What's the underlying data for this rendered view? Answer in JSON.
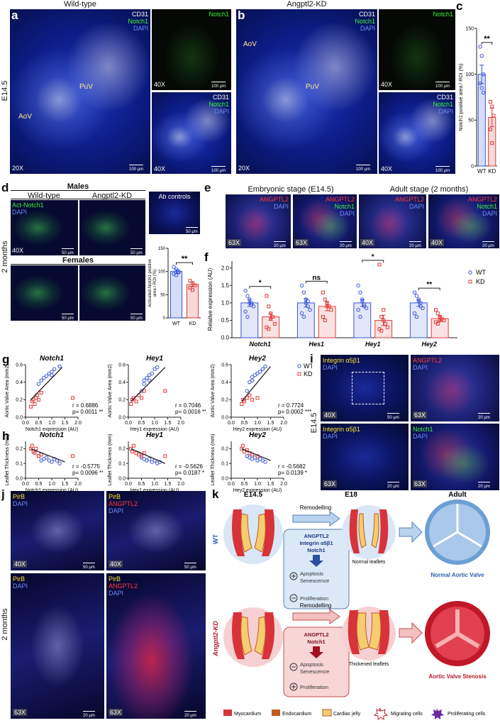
{
  "figure": {
    "a": {
      "letter": "a",
      "header": "Wild-type",
      "stage": "E14.5",
      "stains": [
        "CD31",
        "Notch1",
        "DAPI"
      ],
      "regions": [
        "AoV",
        "PuV"
      ],
      "mag_main": "20X",
      "scale_main": "100 µm",
      "inset1_stain": "Notch1",
      "inset1_mag": "40X",
      "inset1_scale": "100 µm",
      "inset2_stains": [
        "CD31",
        "Notch1",
        "DAPI"
      ],
      "inset2_mag": "40X",
      "inset2_scale": "100 µm"
    },
    "b": {
      "letter": "b",
      "header": "Angptl2-KD",
      "stains": [
        "CD31",
        "Notch1",
        "DAPI"
      ],
      "regions": [
        "AoV",
        "PuV"
      ],
      "mag_main": "20X",
      "scale_main": "100 µm",
      "inset1_stain": "Notch1",
      "inset1_mag": "40X",
      "inset1_scale": "100 µm",
      "inset2_stains": [
        "CD31",
        "Notch1",
        "DAPI"
      ],
      "inset2_mag": "40X",
      "inset2_scale": "100 µm"
    },
    "d": {
      "letter": "d",
      "stage": "2 months",
      "males": "Males",
      "females": "Females",
      "headers": [
        "Wild-type",
        "Angptl2-KD"
      ],
      "stains": [
        "Act-Notch1",
        "DAPI"
      ],
      "mag": "40X",
      "controls": "Ab controls",
      "scale": "50 µm"
    },
    "e": {
      "letter": "e",
      "headers": [
        "Embryonic stage (E14.5)",
        "Adult stage (2 months)"
      ],
      "stains_single": [
        "ANGPTL2",
        "DAPI"
      ],
      "stains_triple": [
        "ANGPTL2",
        "Notch1",
        "DAPI"
      ],
      "mags": [
        "63X",
        "63X",
        "40X",
        "40X"
      ],
      "scales": [
        "20 µm",
        "20 µm",
        "20 µm",
        "20 µm"
      ]
    },
    "i": {
      "letter": "i",
      "stage": "E14.5",
      "panels": [
        {
          "stains": [
            "Integrin α5β1",
            "DAPI"
          ],
          "mag": "40X",
          "scale": "50 µm"
        },
        {
          "stains": [
            "ANGPTL2",
            "DAPI"
          ],
          "mag": "63X",
          "scale": "20 µm"
        },
        {
          "stains": [
            "Integrin α5β1",
            "DAPI"
          ],
          "mag": "63X",
          "scale": "20 µm"
        },
        {
          "stains": [
            "Notch1",
            "DAPI"
          ],
          "mag": "63X",
          "scale": "20 µm"
        }
      ]
    },
    "j": {
      "letter": "j",
      "stage": "2 months",
      "panels": [
        {
          "stains": [
            "PirB",
            "DAPI"
          ],
          "mag": "40X",
          "scale": "50 µm"
        },
        {
          "stains": [
            "PirB",
            "ANGPTL2",
            "DAPI"
          ],
          "mag": "40X",
          "scale": "50 µm"
        },
        {
          "stains": [
            "PirB",
            "DAPI"
          ],
          "mag": "63X",
          "scale": "20 µm"
        },
        {
          "stains": [
            "PirB",
            "ANGPTL2",
            "DAPI"
          ],
          "mag": "63X",
          "scale": "20 µm"
        }
      ]
    },
    "k": {
      "letter": "k",
      "stages": [
        "E14.5",
        "E18",
        "Adult"
      ],
      "rows": [
        "WT",
        "Angptl2-KD"
      ],
      "remodelling": "Remodelling",
      "wt_box": [
        "ANGPTL2",
        "Integrin α5β1",
        "Notch1"
      ],
      "wt_effects": [
        "Apoptosis",
        "Senescence",
        "Proliferation"
      ],
      "kd_box": [
        "ANGPTL2",
        "Notch1"
      ],
      "kd_effects": [
        "Apoptosis",
        "Senescence",
        "Proliferation"
      ],
      "e18_labels": [
        "Normal leaflets",
        "Thickened leaflets"
      ],
      "outcomes": [
        "Normal Aortic Valve",
        "Aortic Valve Stenosis"
      ],
      "legend": [
        "Myocardium",
        "Endocardium",
        "Cardiac jelly",
        "Migrating cells",
        "Proliferating cells"
      ]
    }
  },
  "chart_data": [
    {
      "type": "bar",
      "panel": "c",
      "ylabel": "Notch1 positive area / ROI (%)",
      "categories": [
        "WT",
        "KD"
      ],
      "values": [
        100,
        53
      ],
      "errors": [
        10,
        10
      ],
      "points": [
        [
          130,
          120,
          100,
          90,
          85,
          80
        ],
        [
          70,
          65,
          55,
          40,
          25
        ]
      ],
      "colors": [
        "#3a55d6",
        "#e23b3b"
      ],
      "ylim": [
        0,
        150
      ],
      "yticks": [
        0,
        50,
        100,
        150
      ],
      "annotation": "**"
    },
    {
      "type": "bar",
      "ylabel": [
        "Activated-Notch1 positive",
        "area / ROI (%)"
      ],
      "categories": [
        "WT",
        "KD"
      ],
      "values": [
        100,
        72
      ],
      "errors": [
        4,
        5
      ],
      "points": [
        [
          110,
          105,
          100,
          95,
          92,
          98
        ],
        [
          80,
          75,
          70,
          65,
          60
        ]
      ],
      "colors": [
        "#3a55d6",
        "#e23b3b"
      ],
      "ylim": [
        0,
        150
      ],
      "yticks": [
        0,
        50,
        100,
        150
      ],
      "annotation": "**"
    },
    {
      "type": "grouped_bar",
      "panel": "f",
      "ylabel": "Relative expression (AU)",
      "categories": [
        "Notch1",
        "Hes1",
        "Hey1",
        "Hey2"
      ],
      "ylim": [
        0,
        2.2
      ],
      "yticks": [
        {
          "value": 0,
          "label": "0.0"
        },
        0.5,
        {
          "value": 1,
          "label": "1.0"
        },
        1.5,
        {
          "value": 2,
          "label": "2.0"
        }
      ],
      "annotations": [
        "*",
        "ns",
        "*",
        "**"
      ],
      "series": [
        {
          "name": "WT",
          "color": "#3a55d6",
          "values": [
            1.0,
            1.0,
            1.0,
            1.0
          ],
          "errors": [
            0.1,
            0.12,
            0.1,
            0.1
          ],
          "points": [
            [
              1.35,
              1.2,
              1.0,
              0.95,
              0.9,
              0.75,
              0.6,
              1.1,
              1.0
            ],
            [
              1.5,
              1.3,
              1.0,
              0.9,
              0.8,
              0.7,
              0.6,
              1.1,
              1.05
            ],
            [
              1.5,
              1.3,
              1.1,
              0.9,
              0.85,
              0.8,
              0.6,
              1.05,
              0.95
            ],
            [
              1.3,
              1.2,
              1.05,
              0.9,
              0.85,
              0.7,
              0.6,
              1.1,
              1.0
            ]
          ]
        },
        {
          "name": "KD",
          "color": "#e23b3b",
          "values": [
            0.6,
            0.9,
            0.5,
            0.55
          ],
          "errors": [
            0.1,
            0.12,
            0.15,
            0.07
          ],
          "points": [
            [
              1.2,
              0.9,
              0.7,
              0.6,
              0.4,
              0.3,
              0.25,
              0.55
            ],
            [
              1.3,
              1.1,
              1.0,
              0.9,
              0.8,
              0.6,
              0.5,
              0.9
            ],
            [
              2.1,
              0.6,
              0.5,
              0.4,
              0.3,
              0.25,
              0.2,
              0.8
            ],
            [
              0.8,
              0.7,
              0.6,
              0.55,
              0.5,
              0.45,
              0.4,
              0.5
            ]
          ]
        }
      ]
    },
    {
      "type": "scatter",
      "panel": "g",
      "title": "Notch1",
      "xlabel": "Notch1 expression (AU)",
      "ylabel": "Aortic Valve Area (mm2)",
      "xlim": [
        0,
        2
      ],
      "xticks": [
        {
          "value": 0,
          "label": "0.0"
        },
        0.5,
        {
          "value": 1,
          "label": "1.0"
        },
        1.5,
        {
          "value": 2,
          "label": "2.0"
        }
      ],
      "ylim": [
        0,
        0.6
      ],
      "yticks": [
        {
          "value": 0,
          "label": "0.0"
        },
        0.2,
        0.4,
        0.6
      ],
      "series": [
        {
          "name": "WT",
          "color": "#3a55d6",
          "x": [
            0.5,
            0.6,
            0.7,
            0.8,
            0.9,
            1.0,
            1.0,
            1.1,
            1.3
          ],
          "y": [
            0.38,
            0.42,
            0.45,
            0.47,
            0.5,
            0.52,
            0.48,
            0.55,
            0.58
          ]
        },
        {
          "name": "KD",
          "color": "#e23b3b",
          "x": [
            0.2,
            0.25,
            0.3,
            0.35,
            0.4,
            0.45,
            0.5,
            0.6,
            1.8
          ],
          "y": [
            0.12,
            0.18,
            0.2,
            0.15,
            0.22,
            0.25,
            0.2,
            0.28,
            0.22
          ]
        }
      ],
      "fit": {
        "x": [
          0.2,
          1.4
        ],
        "y": [
          0.2,
          0.57
        ]
      },
      "stats": [
        "r = 0.6886",
        "p= 0.0011 **"
      ]
    },
    {
      "type": "scatter",
      "title": "Hey1",
      "xlabel": "Hey1 expression (AU)",
      "ylabel": "Aortic Valve Area (mm2)",
      "xlim": [
        0,
        2
      ],
      "xticks": [
        {
          "value": 0,
          "label": "0.0"
        },
        0.5,
        {
          "value": 1,
          "label": "1.0"
        },
        1.5,
        {
          "value": 2,
          "label": "2.0"
        }
      ],
      "ylim": [
        0,
        0.6
      ],
      "yticks": [
        {
          "value": 0,
          "label": "0.0"
        },
        0.2,
        0.4,
        0.6
      ],
      "series": [
        {
          "name": "WT",
          "color": "#3a55d6",
          "x": [
            0.5,
            0.6,
            0.7,
            0.8,
            0.9,
            1.0,
            1.1,
            0.6,
            0.8
          ],
          "y": [
            0.3,
            0.42,
            0.45,
            0.48,
            0.5,
            0.55,
            0.57,
            0.38,
            0.42
          ]
        },
        {
          "name": "KD",
          "color": "#e23b3b",
          "x": [
            0.1,
            0.15,
            0.2,
            0.3,
            0.4,
            0.5,
            0.6,
            1.4
          ],
          "y": [
            0.15,
            0.2,
            0.22,
            0.18,
            0.25,
            0.22,
            0.3,
            0.3
          ]
        }
      ],
      "fit": {
        "x": [
          0.1,
          1.4
        ],
        "y": [
          0.18,
          0.57
        ]
      },
      "stats": [
        "r = 0.7046",
        "p= 0.0016 **"
      ]
    },
    {
      "type": "scatter",
      "title": "Hey2",
      "xlabel": "Hey2 expression (AU)",
      "ylabel": "Aortic Valve Area (mm2)",
      "legend": "right",
      "xlim": [
        0,
        2
      ],
      "xticks": [
        {
          "value": 0,
          "label": "0.0"
        },
        0.5,
        {
          "value": 1,
          "label": "1.0"
        },
        1.5,
        {
          "value": 2,
          "label": "2.0"
        }
      ],
      "ylim": [
        0,
        0.6
      ],
      "yticks": [
        {
          "value": 0,
          "label": "0.0"
        },
        0.2,
        0.4,
        0.6
      ],
      "series": [
        {
          "name": "WT",
          "color": "#3a55d6",
          "x": [
            0.6,
            0.7,
            0.8,
            0.9,
            1.0,
            1.1,
            1.2,
            1.3,
            0.8
          ],
          "y": [
            0.3,
            0.4,
            0.42,
            0.48,
            0.5,
            0.52,
            0.55,
            0.58,
            0.46
          ]
        },
        {
          "name": "KD",
          "color": "#e23b3b",
          "x": [
            0.4,
            0.45,
            0.5,
            0.6,
            0.7,
            0.8,
            1.0
          ],
          "y": [
            0.15,
            0.2,
            0.18,
            0.22,
            0.25,
            0.2,
            0.22
          ]
        }
      ],
      "fit": {
        "x": [
          0.4,
          1.5
        ],
        "y": [
          0.18,
          0.58
        ]
      },
      "stats": [
        "r = 0.7724",
        "p= 0.0002 ***"
      ]
    },
    {
      "type": "scatter",
      "panel": "h",
      "title": "Notch1",
      "xlabel": "Notch1 expression (AU)",
      "ylabel": "Leaflet Thickness (mm)",
      "xlim": [
        0,
        2
      ],
      "xticks": [
        {
          "value": 0,
          "label": "0.0"
        },
        0.5,
        {
          "value": 1,
          "label": "1.0"
        },
        1.5,
        {
          "value": 2,
          "label": "2.0"
        }
      ],
      "ylim": [
        0,
        0.25
      ],
      "yticks": [
        {
          "value": 0,
          "label": "0.0"
        },
        0.1,
        0.2
      ],
      "series": [
        {
          "name": "WT",
          "color": "#3a55d6",
          "x": [
            0.5,
            0.6,
            0.7,
            0.8,
            0.9,
            1.0,
            1.1,
            1.2,
            1.3
          ],
          "y": [
            0.15,
            0.12,
            0.13,
            0.14,
            0.12,
            0.11,
            0.13,
            0.12,
            0.1
          ]
        },
        {
          "name": "KD",
          "color": "#e23b3b",
          "x": [
            0.2,
            0.25,
            0.3,
            0.35,
            0.4,
            0.5,
            0.6,
            1.8
          ],
          "y": [
            0.2,
            0.22,
            0.18,
            0.17,
            0.2,
            0.15,
            0.16,
            0.15
          ]
        }
      ],
      "fit": {
        "x": [
          0.2,
          1.5
        ],
        "y": [
          0.2,
          0.11
        ]
      },
      "stats": [
        "r = -0.5775",
        "p= 0.0096 **"
      ]
    },
    {
      "type": "scatter",
      "title": "Hey1",
      "xlabel": "Hey1 expression (AU)",
      "ylabel": "Leaflet Thickness (mm)",
      "xlim": [
        0,
        2
      ],
      "xticks": [
        {
          "value": 0,
          "label": "0.0"
        },
        0.5,
        {
          "value": 1,
          "label": "1.0"
        },
        1.5,
        {
          "value": 2,
          "label": "2.0"
        }
      ],
      "ylim": [
        0,
        0.25
      ],
      "yticks": [
        {
          "value": 0,
          "label": "0.0"
        },
        0.1,
        0.2
      ],
      "series": [
        {
          "name": "WT",
          "color": "#3a55d6",
          "x": [
            0.5,
            0.6,
            0.7,
            0.8,
            0.9,
            1.0,
            1.1,
            1.2
          ],
          "y": [
            0.14,
            0.13,
            0.12,
            0.13,
            0.11,
            0.12,
            0.1,
            0.11
          ]
        },
        {
          "name": "KD",
          "color": "#e23b3b",
          "x": [
            0.1,
            0.15,
            0.2,
            0.3,
            0.4,
            0.5,
            0.6,
            1.4
          ],
          "y": [
            0.2,
            0.18,
            0.22,
            0.17,
            0.16,
            0.15,
            0.17,
            0.15
          ]
        }
      ],
      "fit": {
        "x": [
          0.1,
          1.4
        ],
        "y": [
          0.2,
          0.1
        ]
      },
      "stats": [
        "r = -0.5626",
        "p= 0.0187 *"
      ]
    },
    {
      "type": "scatter",
      "title": "Hey2",
      "xlabel": "Hey2 expression (AU)",
      "ylabel": "Leaflet Thickness (mm)",
      "xlim": [
        0,
        2
      ],
      "xticks": [
        {
          "value": 0,
          "label": "0.0"
        },
        0.5,
        {
          "value": 1,
          "label": "1.0"
        },
        1.5,
        {
          "value": 2,
          "label": "2.0"
        }
      ],
      "ylim": [
        0,
        0.25
      ],
      "yticks": [
        {
          "value": 0,
          "label": "0.0"
        },
        0.1,
        0.2
      ],
      "series": [
        {
          "name": "WT",
          "color": "#3a55d6",
          "x": [
            0.6,
            0.7,
            0.8,
            0.9,
            1.0,
            1.1,
            1.2,
            1.3
          ],
          "y": [
            0.15,
            0.14,
            0.13,
            0.14,
            0.12,
            0.13,
            0.12,
            0.11
          ]
        },
        {
          "name": "KD",
          "color": "#e23b3b",
          "x": [
            0.4,
            0.45,
            0.5,
            0.6,
            0.7,
            0.8,
            1.0
          ],
          "y": [
            0.2,
            0.22,
            0.18,
            0.19,
            0.17,
            0.16,
            0.15
          ]
        }
      ],
      "fit": {
        "x": [
          0.4,
          1.5
        ],
        "y": [
          0.2,
          0.12
        ]
      },
      "stats": [
        "r = -0.5682",
        "p= 0.0139 *"
      ]
    }
  ]
}
